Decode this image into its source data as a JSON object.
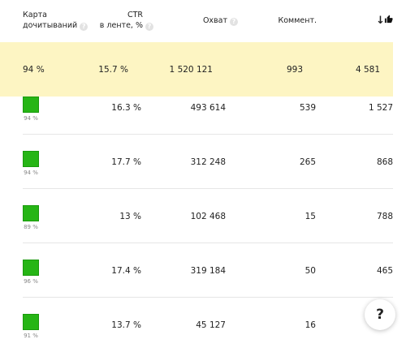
{
  "header": {
    "map_line1": "Карта",
    "map_line2": "дочитываний",
    "ctr_line1": "CTR",
    "ctr_line2": "в ленте, %",
    "reach": "Охват",
    "comments": "Коммент.",
    "likes_sort": "↓",
    "help_glyph": "?"
  },
  "rows": [
    {
      "map": "94 %",
      "ctr": "15.7 %",
      "reach": "1 520 121",
      "comments": "993",
      "likes": "4 581"
    },
    {
      "map": "94 %",
      "ctr": "16.3 %",
      "reach": "493 614",
      "comments": "539",
      "likes": "1 527"
    },
    {
      "map": "94 %",
      "ctr": "17.7 %",
      "reach": "312 248",
      "comments": "265",
      "likes": "868"
    },
    {
      "map": "89 %",
      "ctr": "13 %",
      "reach": "102 468",
      "comments": "15",
      "likes": "788"
    },
    {
      "map": "96 %",
      "ctr": "17.4 %",
      "reach": "319 184",
      "comments": "50",
      "likes": "465"
    },
    {
      "map": "91 %",
      "ctr": "13.7 %",
      "reach": "45 127",
      "comments": "16",
      "likes": ""
    }
  ],
  "help_button": "?",
  "colors": {
    "highlight": "#fdf5c3",
    "map_green": "#26b515"
  }
}
